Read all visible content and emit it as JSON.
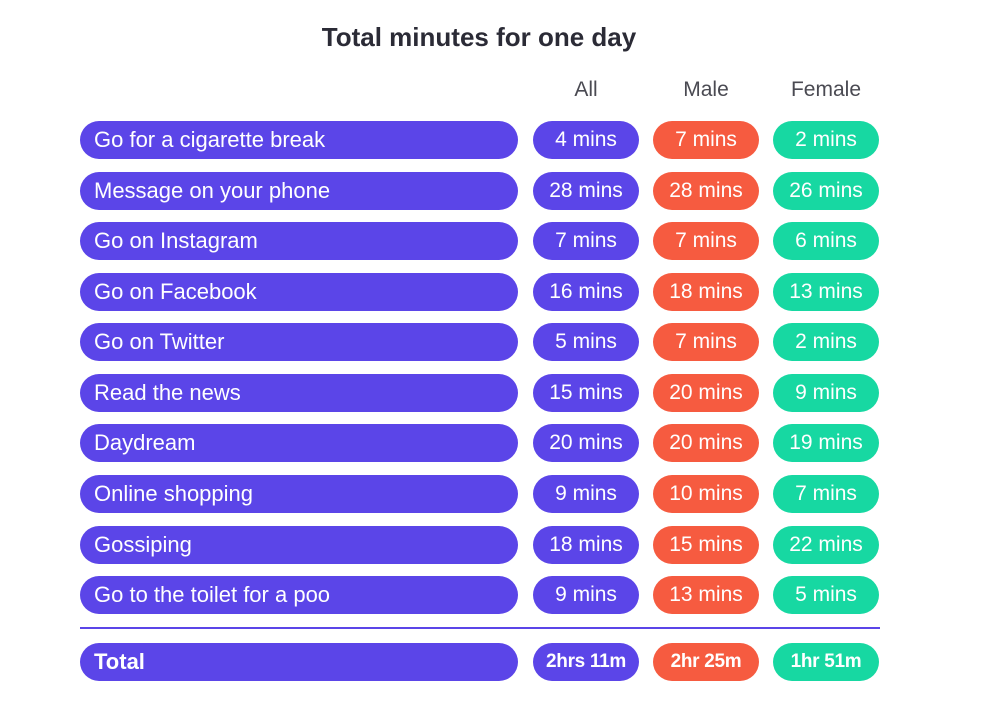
{
  "title": "Total minutes for one day",
  "colors": {
    "all": "#5b45e8",
    "male": "#f65b40",
    "female": "#17d8a2"
  },
  "chart_data": {
    "type": "table",
    "title": "Total minutes for one day",
    "columns": [
      "All",
      "Male",
      "Female"
    ],
    "rows": [
      {
        "label": "Go for a cigarette break",
        "all": "4 mins",
        "male": "7 mins",
        "female": "2 mins"
      },
      {
        "label": "Message on your phone",
        "all": "28 mins",
        "male": "28 mins",
        "female": "26 mins"
      },
      {
        "label": "Go on Instagram",
        "all": "7 mins",
        "male": "7 mins",
        "female": "6 mins"
      },
      {
        "label": "Go on Facebook",
        "all": "16 mins",
        "male": "18 mins",
        "female": "13 mins"
      },
      {
        "label": "Go on Twitter",
        "all": "5 mins",
        "male": "7 mins",
        "female": "2 mins"
      },
      {
        "label": "Read the news",
        "all": "15 mins",
        "male": "20 mins",
        "female": "9 mins"
      },
      {
        "label": "Daydream",
        "all": "20 mins",
        "male": "20 mins",
        "female": "19 mins"
      },
      {
        "label": "Online shopping",
        "all": "9 mins",
        "male": "10 mins",
        "female": "7 mins"
      },
      {
        "label": "Gossiping",
        "all": "18 mins",
        "male": "15 mins",
        "female": "22 mins"
      },
      {
        "label": "Go to the toilet for a poo",
        "all": "9 mins",
        "male": "13 mins",
        "female": "5 mins"
      }
    ],
    "total": {
      "label": "Total",
      "all": "2hrs 11m",
      "male": "2hr 25m",
      "female": "1hr 51m"
    }
  }
}
